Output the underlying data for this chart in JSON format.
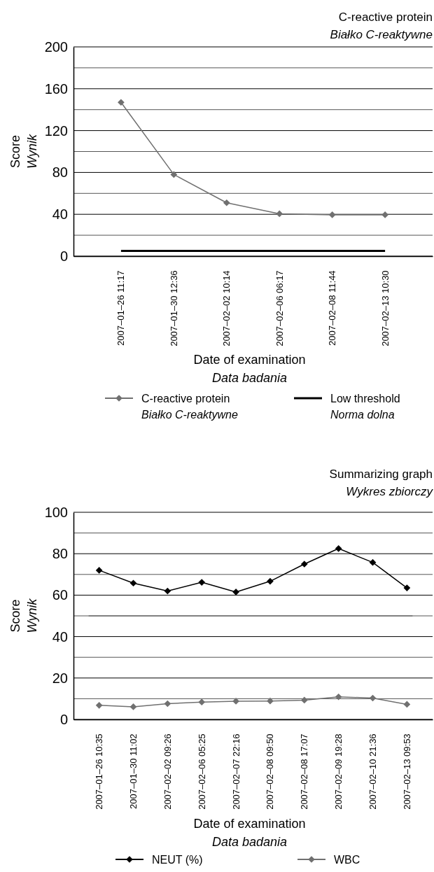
{
  "chart_data": [
    {
      "type": "line",
      "title": "C-reactive protein",
      "subtitle": "Białko C-reaktywne",
      "xlabel": "Date of examination\nData badania",
      "ylabel": "Score\nWynik",
      "categories": [
        "2007–01–26 11:17",
        "2007–01–30 12:36",
        "2007–02–02 10:14",
        "2007–02–06 06:17",
        "2007–02–08 11:44",
        "2007–02–13 10:30"
      ],
      "series": [
        {
          "name": "C-reactive protein\nBiałko C-reaktywne",
          "color": "#707070",
          "marker": "diamond",
          "values": [
            147,
            78,
            51,
            40.5,
            39.5,
            39.5
          ]
        },
        {
          "name": "Low threshold\nNorma dolna",
          "color": "#000000",
          "marker": "none",
          "values": [
            5,
            5,
            5,
            5,
            5,
            5
          ]
        }
      ],
      "ylim": [
        0,
        200
      ],
      "yticks": [
        0,
        {
          "value": 20,
          "label": null
        },
        40,
        {
          "value": 60,
          "label": null
        },
        80,
        {
          "value": 100,
          "label": null
        },
        120,
        {
          "value": 140,
          "label": null
        },
        160,
        {
          "value": 180,
          "label": null
        },
        200
      ],
      "grid": "y",
      "legend": "bottom"
    },
    {
      "type": "line",
      "title": "Summarizing graph",
      "subtitle": "Wykres zbiorczy",
      "xlabel": "Date of examination\nData badania",
      "ylabel": "Score\nWynik",
      "categories": [
        "2007–01–26 10:35",
        "2007–01–30 11:02",
        "2007–02–02 09:26",
        "2007–02–06 05:25",
        "2007–02–07 22:16",
        "2007–02–08 09:50",
        "2007–02–08 17:07",
        "2007–02–09 19:28",
        "2007–02–10 21:36",
        "2007–02–13 09:53"
      ],
      "series": [
        {
          "name": "NEUT (%)",
          "color": "#000000",
          "marker": "diamond",
          "values": [
            72,
            65.8,
            62,
            66.2,
            61.5,
            66.7,
            75,
            82.5,
            75.8,
            63.5
          ]
        },
        {
          "name": "WBC",
          "color": "#707070",
          "marker": "diamond",
          "values": [
            6.8,
            6.1,
            7.6,
            8.4,
            8.8,
            8.9,
            9.3,
            10.9,
            10.3,
            7.3
          ]
        }
      ],
      "ref_lines": [
        {
          "axis": "y",
          "value": 50,
          "color": "#808080"
        }
      ],
      "ylim": [
        0,
        100
      ],
      "yticks": [
        0,
        {
          "value": 10,
          "label": null
        },
        20,
        {
          "value": 30,
          "label": null
        },
        40,
        {
          "value": 50,
          "label": null
        },
        60,
        {
          "value": 70,
          "label": null
        },
        80,
        {
          "value": 90,
          "label": null
        },
        100
      ],
      "grid": "y",
      "legend": "bottom"
    }
  ]
}
